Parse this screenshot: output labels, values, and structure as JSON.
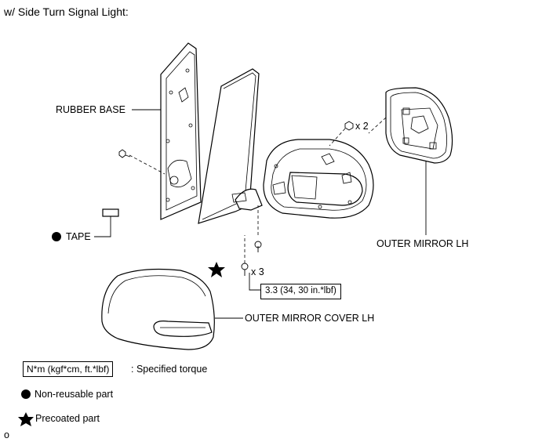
{
  "header": {
    "title": "w/ Side Turn Signal Light:"
  },
  "parts": {
    "rubber_base": "RUBBER BASE",
    "tape": "TAPE",
    "outer_mirror": "OUTER MIRROR LH",
    "outer_mirror_cover": "OUTER MIRROR COVER LH"
  },
  "fasteners": {
    "screw_qty": "x 2",
    "bolt_qty": "x 3",
    "torque_value": "3.3 (34, 30 in.*lbf)"
  },
  "legend": {
    "torque_unit": "N*m (kgf*cm, ft.*lbf)",
    "torque_desc": ": Specified torque",
    "nonreusable": "Non-reusable part",
    "precoated": "Precoated part"
  },
  "footer": {
    "code": "o"
  }
}
